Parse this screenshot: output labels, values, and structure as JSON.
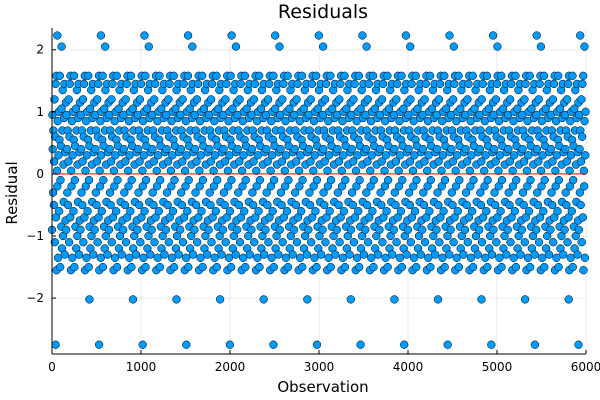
{
  "chart_data": {
    "type": "scatter",
    "title": "Residuals",
    "xlabel": "Observation",
    "ylabel": "Residual",
    "xlim": [
      0,
      6000
    ],
    "ylim": [
      -2.9,
      2.35
    ],
    "xticks": [
      0,
      1000,
      2000,
      3000,
      4000,
      5000,
      6000
    ],
    "xtick_labels": [
      "0",
      "1000",
      "2000",
      "3000",
      "4000",
      "5000",
      "6000"
    ],
    "yticks": [
      -2,
      -1,
      0,
      1,
      2
    ],
    "ytick_labels": [
      "−2",
      "−1",
      "0",
      "1",
      "2"
    ],
    "grid": true,
    "legend": "none",
    "reference_line": {
      "y": 0,
      "color": "#ff0000"
    },
    "colors": {
      "points": "#009AFA",
      "point_outline": "#000000",
      "reference_line": "#ff0000"
    },
    "n_points": 6000,
    "series": [
      {
        "period": 489.6,
        "repeat_x_start": 80,
        "count": 6000,
        "outliers": [
          {
            "x": 60,
            "y": 2.23
          },
          {
            "x": 108,
            "y": 2.05
          },
          {
            "x": 40,
            "y": -2.75
          },
          {
            "x": 420,
            "y": -2.02
          }
        ],
        "values": [
          -0.9,
          0.95,
          0.4,
          -0.3,
          0.7,
          -0.5,
          0.2,
          1.2,
          -1.1,
          0.6,
          1.45,
          -0.7,
          1.58,
          -1.55,
          0.05,
          -0.2,
          0.85,
          -1.35,
          0.3,
          1.0,
          -0.6,
          0.55,
          1.58,
          -1.5,
          -0.1,
          0.45,
          -0.85,
          1.05,
          -1.2,
          0.7,
          1.35,
          -1.0,
          0.15,
          -0.45,
          0.9,
          1.45,
          -1.3,
          0.35,
          -0.75,
          1.15
        ]
      }
    ]
  }
}
